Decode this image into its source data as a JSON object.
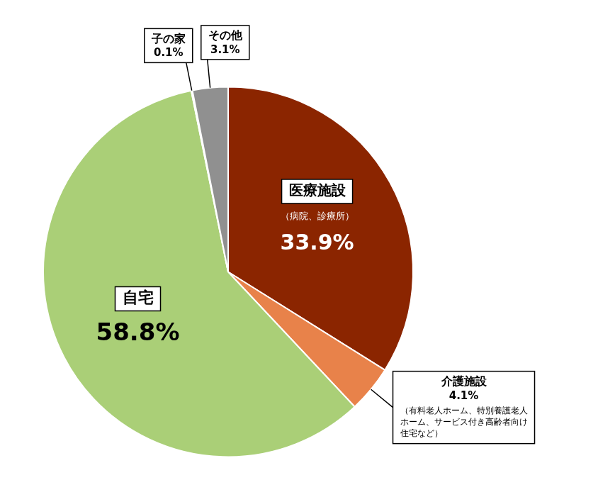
{
  "chart_data": {
    "type": "pie",
    "categories": [
      "医療施設",
      "介護施設",
      "自宅",
      "子の家",
      "その他"
    ],
    "values": [
      33.9,
      4.1,
      58.8,
      0.1,
      3.1
    ],
    "colors": [
      "#8B2500",
      "#E8824A",
      "#AACF77",
      "#3B6FBF",
      "#909090"
    ],
    "data_labels": true,
    "value_labels": [
      "33.9%",
      "4.1%",
      "58.8%",
      "0.1%",
      "3.1%"
    ],
    "annotations": [
      {
        "category": "医療施設",
        "text": "（病院、診療所）"
      },
      {
        "category": "介護施設",
        "text": "（有料老人ホーム、特別養護老人\nホーム、サービス付き高齢者向け\n住宅など）"
      }
    ]
  }
}
